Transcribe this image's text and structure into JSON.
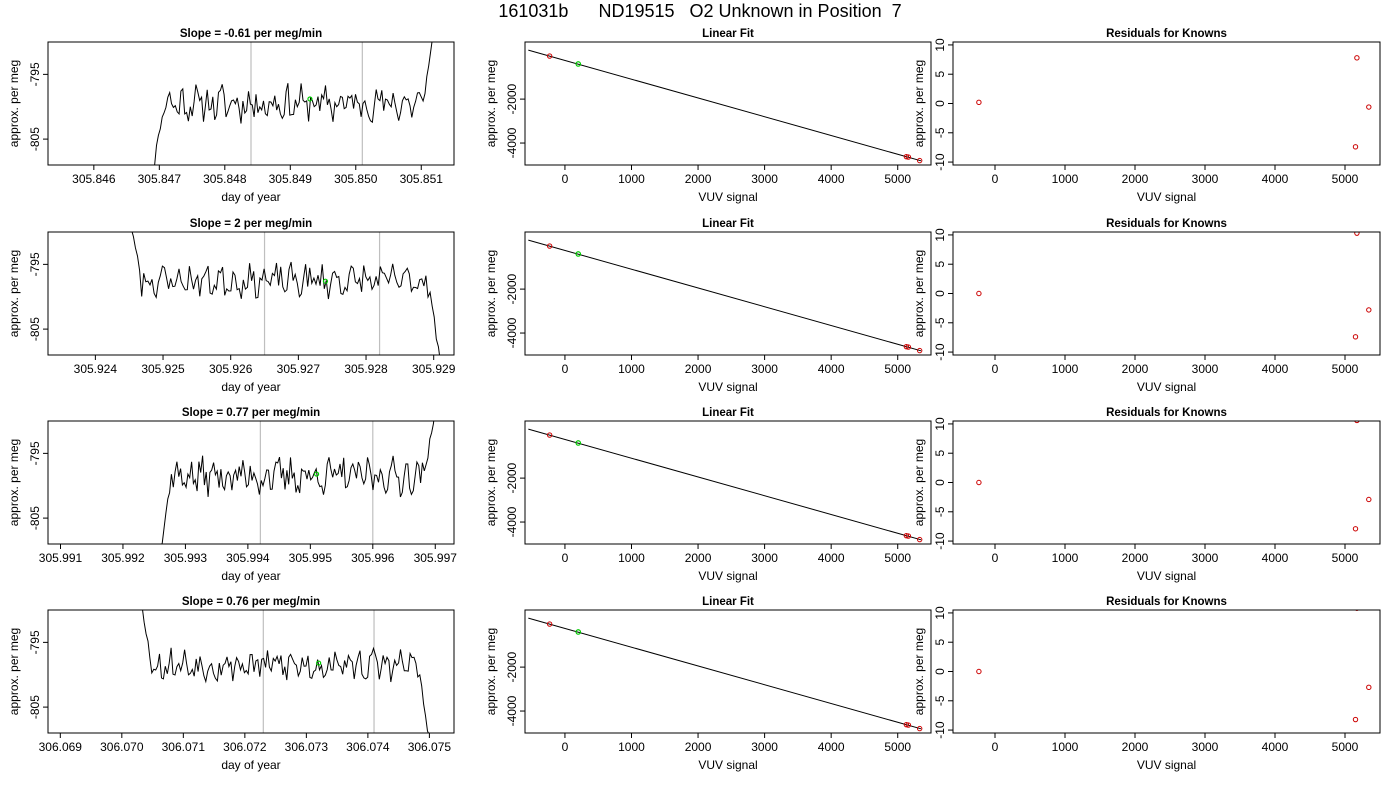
{
  "suptitle": "161031b      ND19515   O2 Unknown in Position  7",
  "colors": {
    "trace": "#000000",
    "marker_green": "#00cc00",
    "marker_red": "#cc0000",
    "vline": "#bfbfbf",
    "axis": "#000000"
  },
  "chart_data": [
    {
      "type": "line",
      "title": "Slope =  -0.61  per meg/min",
      "xlabel": "day of year",
      "ylabel": "approx. per meg",
      "xlim": [
        305.8453,
        305.8515
      ],
      "ylim": [
        -809,
        -790
      ],
      "xticks": [
        305.846,
        305.847,
        305.848,
        305.849,
        305.85,
        305.851
      ],
      "xtick_labels": [
        "305.846",
        "305.847",
        "305.848",
        "305.849",
        "305.850",
        "305.851"
      ],
      "yticks": [
        -795,
        -805
      ],
      "ytick_labels": [
        "-795",
        "-805"
      ],
      "vlines": [
        305.8484,
        305.8501
      ],
      "trace": {
        "x_start": 305.8469,
        "x_end": 305.8512,
        "seed": 11,
        "start_y": -810,
        "mean": -799.5,
        "amp": 2.2,
        "end_y": -788
      },
      "marker": {
        "x": 305.8493,
        "y": -798.8
      }
    },
    {
      "type": "scatter",
      "title": "Linear Fit",
      "xlabel": "VUV signal",
      "ylabel": "approx. per meg",
      "xlim": [
        -600,
        5500
      ],
      "ylim": [
        -5000,
        600
      ],
      "xticks": [
        0,
        1000,
        2000,
        3000,
        4000,
        5000
      ],
      "xtick_labels": [
        "0",
        "1000",
        "2000",
        "3000",
        "4000",
        "5000"
      ],
      "yticks": [
        -2000,
        -4000
      ],
      "ytick_labels": [
        "-2000",
        "-4000"
      ],
      "fit_line": {
        "x": [
          -550,
          5350
        ],
        "y": [
          230,
          -4810
        ]
      },
      "points_red": [
        {
          "x": -230,
          "y": -40
        },
        {
          "x": 5130,
          "y": -4620
        },
        {
          "x": 5160,
          "y": -4640
        },
        {
          "x": 5330,
          "y": -4800
        }
      ],
      "point_green": {
        "x": 200,
        "y": -400
      }
    },
    {
      "type": "scatter",
      "title": "Residuals for Knowns",
      "xlabel": "VUV signal",
      "ylabel": "approx. per meg",
      "xlim": [
        -600,
        5500
      ],
      "ylim": [
        -10.5,
        10.5
      ],
      "xticks": [
        0,
        1000,
        2000,
        3000,
        4000,
        5000
      ],
      "xtick_labels": [
        "0",
        "1000",
        "2000",
        "3000",
        "4000",
        "5000"
      ],
      "yticks": [
        10,
        5,
        0,
        -5,
        -10
      ],
      "ytick_labels": [
        "10",
        "5",
        "0",
        "-5",
        "-10"
      ],
      "points_red": [
        {
          "x": -230,
          "y": 0.2
        },
        {
          "x": 5170,
          "y": 7.8
        },
        {
          "x": 5150,
          "y": -7.4
        },
        {
          "x": 5340,
          "y": -0.6
        }
      ]
    },
    {
      "type": "line",
      "title": "Slope =  2  per meg/min",
      "xlabel": "day of year",
      "ylabel": "approx. per meg",
      "xlim": [
        305.9233,
        305.9293
      ],
      "ylim": [
        -809,
        -790
      ],
      "xticks": [
        305.924,
        305.925,
        305.926,
        305.927,
        305.928,
        305.929
      ],
      "xtick_labels": [
        "305.924",
        "305.925",
        "305.926",
        "305.927",
        "305.928",
        "305.929"
      ],
      "yticks": [
        -795,
        -805
      ],
      "ytick_labels": [
        "-795",
        "-805"
      ],
      "vlines": [
        305.9265,
        305.9282
      ],
      "trace": {
        "x_start": 305.9245,
        "x_end": 305.9291,
        "seed": 23,
        "start_y": -788,
        "mean": -797.5,
        "amp": 2.0,
        "end_y": -810
      },
      "marker": {
        "x": 305.9274,
        "y": -797.6
      }
    },
    {
      "type": "scatter",
      "title": "Linear Fit",
      "xlabel": "VUV signal",
      "ylabel": "approx. per meg",
      "xlim": [
        -600,
        5500
      ],
      "ylim": [
        -5000,
        600
      ],
      "xticks": [
        0,
        1000,
        2000,
        3000,
        4000,
        5000
      ],
      "xtick_labels": [
        "0",
        "1000",
        "2000",
        "3000",
        "4000",
        "5000"
      ],
      "yticks": [
        -2000,
        -4000
      ],
      "ytick_labels": [
        "-2000",
        "-4000"
      ],
      "fit_line": {
        "x": [
          -550,
          5350
        ],
        "y": [
          230,
          -4810
        ]
      },
      "points_red": [
        {
          "x": -230,
          "y": -40
        },
        {
          "x": 5130,
          "y": -4620
        },
        {
          "x": 5160,
          "y": -4640
        },
        {
          "x": 5330,
          "y": -4800
        }
      ],
      "point_green": {
        "x": 200,
        "y": -400
      }
    },
    {
      "type": "scatter",
      "title": "Residuals for Knowns",
      "xlabel": "VUV signal",
      "ylabel": "approx. per meg",
      "xlim": [
        -600,
        5500
      ],
      "ylim": [
        -10.5,
        10.5
      ],
      "xticks": [
        0,
        1000,
        2000,
        3000,
        4000,
        5000
      ],
      "xtick_labels": [
        "0",
        "1000",
        "2000",
        "3000",
        "4000",
        "5000"
      ],
      "yticks": [
        10,
        5,
        0,
        -5,
        -10
      ],
      "ytick_labels": [
        "10",
        "5",
        "0",
        "-5",
        "-10"
      ],
      "points_red": [
        {
          "x": -230,
          "y": 0.0
        },
        {
          "x": 5170,
          "y": 10.3
        },
        {
          "x": 5150,
          "y": -7.4
        },
        {
          "x": 5340,
          "y": -2.8
        }
      ]
    },
    {
      "type": "line",
      "title": "Slope =  0.77  per meg/min",
      "xlabel": "day of year",
      "ylabel": "approx. per meg",
      "xlim": [
        305.9908,
        305.9973
      ],
      "ylim": [
        -809,
        -790
      ],
      "xticks": [
        305.991,
        305.992,
        305.993,
        305.994,
        305.995,
        305.996,
        305.997
      ],
      "xtick_labels": [
        "305.991",
        "305.992",
        "305.993",
        "305.994",
        "305.995",
        "305.996",
        "305.997"
      ],
      "yticks": [
        -795,
        -805
      ],
      "ytick_labels": [
        "-795",
        "-805"
      ],
      "vlines": [
        305.9942,
        305.996
      ],
      "trace": {
        "x_start": 305.9926,
        "x_end": 305.997,
        "seed": 37,
        "start_y": -810,
        "mean": -798.5,
        "amp": 2.2,
        "end_y": -788
      },
      "marker": {
        "x": 305.9951,
        "y": -798.2
      }
    },
    {
      "type": "scatter",
      "title": "Linear Fit",
      "xlabel": "VUV signal",
      "ylabel": "approx. per meg",
      "xlim": [
        -600,
        5500
      ],
      "ylim": [
        -5000,
        600
      ],
      "xticks": [
        0,
        1000,
        2000,
        3000,
        4000,
        5000
      ],
      "xtick_labels": [
        "0",
        "1000",
        "2000",
        "3000",
        "4000",
        "5000"
      ],
      "yticks": [
        -2000,
        -4000
      ],
      "ytick_labels": [
        "-2000",
        "-4000"
      ],
      "fit_line": {
        "x": [
          -550,
          5350
        ],
        "y": [
          230,
          -4810
        ]
      },
      "points_red": [
        {
          "x": -230,
          "y": -40
        },
        {
          "x": 5130,
          "y": -4620
        },
        {
          "x": 5160,
          "y": -4640
        },
        {
          "x": 5330,
          "y": -4800
        }
      ],
      "point_green": {
        "x": 200,
        "y": -400
      }
    },
    {
      "type": "scatter",
      "title": "Residuals for Knowns",
      "xlabel": "VUV signal",
      "ylabel": "approx. per meg",
      "xlim": [
        -600,
        5500
      ],
      "ylim": [
        -10.5,
        10.5
      ],
      "xticks": [
        0,
        1000,
        2000,
        3000,
        4000,
        5000
      ],
      "xtick_labels": [
        "0",
        "1000",
        "2000",
        "3000",
        "4000",
        "5000"
      ],
      "yticks": [
        10,
        5,
        0,
        -5,
        -10
      ],
      "ytick_labels": [
        "10",
        "5",
        "0",
        "-5",
        "-10"
      ],
      "points_red": [
        {
          "x": -230,
          "y": 0.0
        },
        {
          "x": 5170,
          "y": 10.6
        },
        {
          "x": 5150,
          "y": -7.9
        },
        {
          "x": 5340,
          "y": -2.9
        }
      ]
    },
    {
      "type": "line",
      "title": "Slope =  0.76  per meg/min",
      "xlabel": "day of year",
      "ylabel": "approx. per meg",
      "xlim": [
        306.0688,
        306.0754
      ],
      "ylim": [
        -809,
        -790
      ],
      "xticks": [
        306.069,
        306.07,
        306.071,
        306.072,
        306.073,
        306.074,
        306.075
      ],
      "xtick_labels": [
        "306.069",
        "306.070",
        "306.071",
        "306.072",
        "306.073",
        "306.074",
        "306.075"
      ],
      "yticks": [
        -795,
        -805
      ],
      "ytick_labels": [
        "-795",
        "-805"
      ],
      "vlines": [
        306.0723,
        306.0741
      ],
      "trace": {
        "x_start": 306.0703,
        "x_end": 306.075,
        "seed": 53,
        "start_y": -788,
        "mean": -798.5,
        "amp": 2.0,
        "end_y": -810
      },
      "marker": {
        "x": 306.0732,
        "y": -798.2
      }
    },
    {
      "type": "scatter",
      "title": "Linear Fit",
      "xlabel": "VUV signal",
      "ylabel": "approx. per meg",
      "xlim": [
        -600,
        5500
      ],
      "ylim": [
        -5000,
        600
      ],
      "xticks": [
        0,
        1000,
        2000,
        3000,
        4000,
        5000
      ],
      "xtick_labels": [
        "0",
        "1000",
        "2000",
        "3000",
        "4000",
        "5000"
      ],
      "yticks": [
        -2000,
        -4000
      ],
      "ytick_labels": [
        "-2000",
        "-4000"
      ],
      "fit_line": {
        "x": [
          -550,
          5350
        ],
        "y": [
          230,
          -4810
        ]
      },
      "points_red": [
        {
          "x": -230,
          "y": -40
        },
        {
          "x": 5130,
          "y": -4620
        },
        {
          "x": 5160,
          "y": -4640
        },
        {
          "x": 5330,
          "y": -4800
        }
      ],
      "point_green": {
        "x": 200,
        "y": -400
      }
    },
    {
      "type": "scatter",
      "title": "Residuals for Knowns",
      "xlabel": "VUV signal",
      "ylabel": "approx. per meg",
      "xlim": [
        -600,
        5500
      ],
      "ylim": [
        -10.5,
        10.5
      ],
      "xticks": [
        0,
        1000,
        2000,
        3000,
        4000,
        5000
      ],
      "xtick_labels": [
        "0",
        "1000",
        "2000",
        "3000",
        "4000",
        "5000"
      ],
      "yticks": [
        10,
        5,
        0,
        -5,
        -10
      ],
      "ytick_labels": [
        "10",
        "5",
        "0",
        "-5",
        "-10"
      ],
      "points_red": [
        {
          "x": -230,
          "y": 0.0
        },
        {
          "x": 5170,
          "y": 10.8
        },
        {
          "x": 5150,
          "y": -8.2
        },
        {
          "x": 5340,
          "y": -2.7
        }
      ]
    }
  ]
}
